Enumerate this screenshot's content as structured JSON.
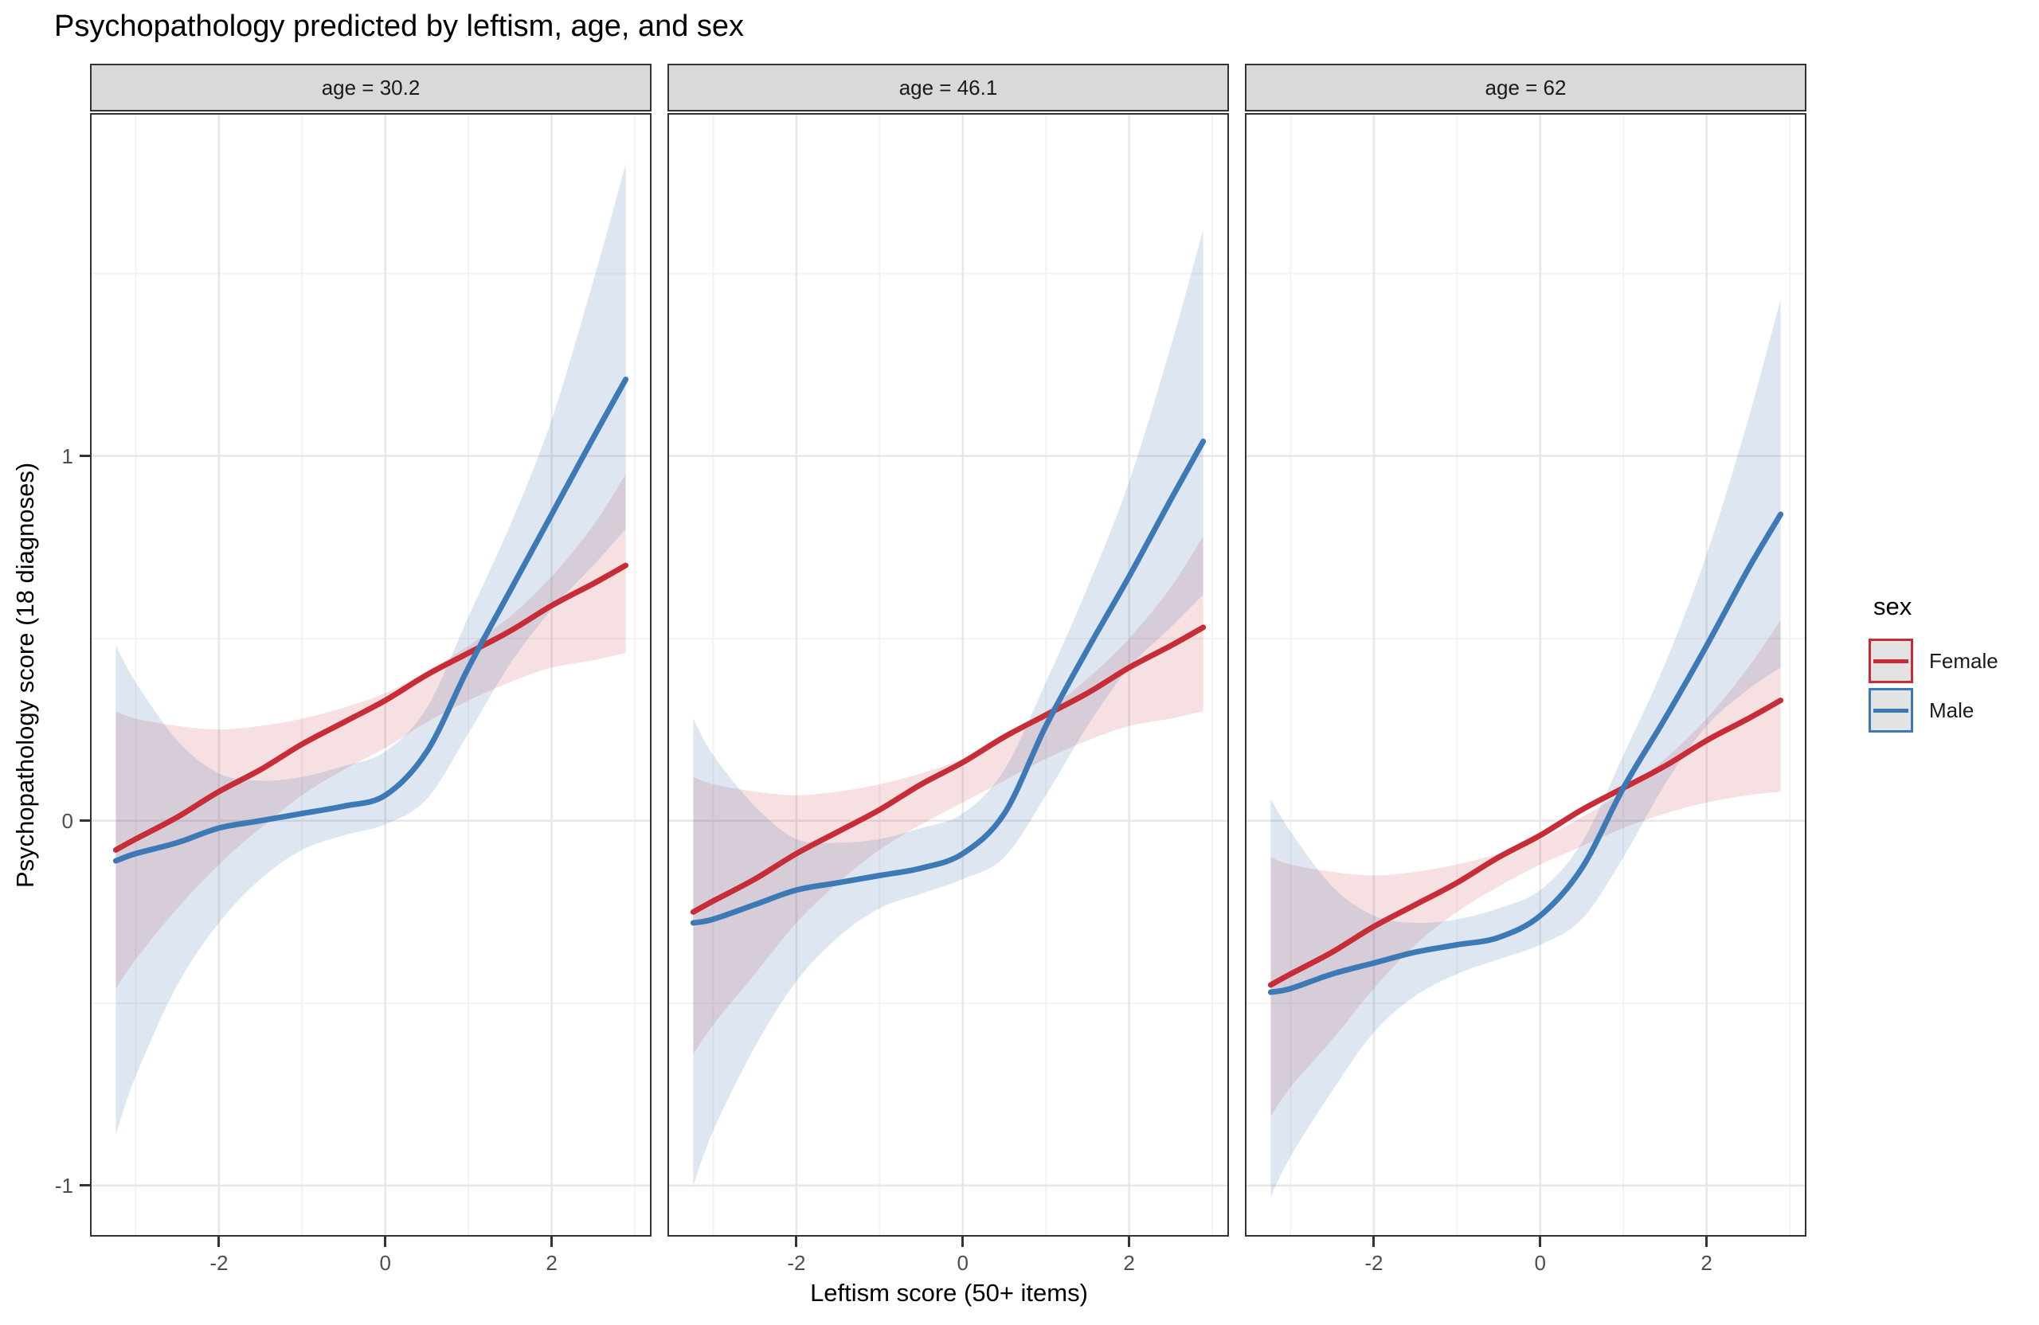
{
  "title": "Psychopathology predicted by leftism, age, and sex",
  "axes": {
    "x": {
      "title": "Leftism score (50+ items)",
      "range": [
        -3.55,
        3.2
      ],
      "major_ticks": [
        {
          "value": -2,
          "label": "-2"
        },
        {
          "value": 0,
          "label": "0"
        },
        {
          "value": 2,
          "label": "2"
        }
      ],
      "minor_gridlines": [
        -3,
        -1,
        1,
        3
      ]
    },
    "y": {
      "title": "Psychopathology score (18 diagnoses)",
      "range": [
        -1.14,
        1.94
      ],
      "major_ticks": [
        {
          "value": 1,
          "label": "1"
        },
        {
          "value": 0,
          "label": "0"
        },
        {
          "value": -1,
          "label": "-1"
        }
      ],
      "minor_gridlines": [
        1.5,
        0.5,
        -0.5
      ]
    }
  },
  "legend": {
    "title": "sex",
    "entries": [
      {
        "label": "Female",
        "color": "#c62d36"
      },
      {
        "label": "Male",
        "color": "#3d79b5"
      }
    ]
  },
  "colors": {
    "female_line": "#c62d36",
    "male_line": "#3d79b5",
    "female_ribbon": "rgba(200,45,55,0.15)",
    "male_ribbon": "rgba(70,120,180,0.18)",
    "grid_major": "#e7e7e7",
    "grid_minor": "#f3f3f3",
    "panel_border": "#333333",
    "strip_fill": "#d9d9d9"
  },
  "chart_data": {
    "type": "line",
    "title": "Psychopathology predicted by leftism, age, and sex",
    "xlabel": "Leftism score (50+ items)",
    "ylabel": "Psychopathology score (18 diagnoses)",
    "xlim": [
      -3.55,
      3.2
    ],
    "ylim": [
      -1.14,
      1.94
    ],
    "x_ticks": [
      -2,
      0,
      2
    ],
    "y_ticks": [
      -1,
      0,
      1
    ],
    "legend_title": "sex",
    "x": [
      -3.24,
      -3.0,
      -2.5,
      -2.0,
      -1.5,
      -1.0,
      -0.5,
      0.0,
      0.5,
      1.0,
      1.5,
      2.0,
      2.5,
      2.89
    ],
    "facets": [
      {
        "label": "age = 30.2",
        "series": [
          {
            "name": "Female",
            "line": [
              -0.08,
              -0.05,
              0.01,
              0.08,
              0.14,
              0.21,
              0.27,
              0.33,
              0.4,
              0.46,
              0.52,
              0.59,
              0.65,
              0.7
            ],
            "ci_upper": [
              0.3,
              0.28,
              0.26,
              0.25,
              0.26,
              0.28,
              0.31,
              0.35,
              0.41,
              0.48,
              0.56,
              0.67,
              0.81,
              0.95
            ],
            "ci_lower": [
              -0.46,
              -0.38,
              -0.24,
              -0.12,
              -0.02,
              0.07,
              0.14,
              0.2,
              0.27,
              0.33,
              0.38,
              0.42,
              0.44,
              0.46
            ]
          },
          {
            "name": "Male",
            "line": [
              -0.11,
              -0.09,
              -0.06,
              -0.02,
              0.0,
              0.02,
              0.04,
              0.07,
              0.19,
              0.42,
              0.63,
              0.84,
              1.05,
              1.21
            ],
            "ci_upper": [
              0.48,
              0.38,
              0.22,
              0.13,
              0.11,
              0.12,
              0.15,
              0.19,
              0.31,
              0.56,
              0.81,
              1.1,
              1.48,
              1.8
            ],
            "ci_lower": [
              -0.86,
              -0.7,
              -0.45,
              -0.28,
              -0.16,
              -0.08,
              -0.04,
              -0.01,
              0.06,
              0.24,
              0.43,
              0.58,
              0.7,
              0.8
            ]
          }
        ]
      },
      {
        "label": "age = 46.1",
        "series": [
          {
            "name": "Female",
            "line": [
              -0.25,
              -0.22,
              -0.16,
              -0.09,
              -0.03,
              0.03,
              0.1,
              0.16,
              0.23,
              0.29,
              0.35,
              0.42,
              0.48,
              0.53
            ],
            "ci_upper": [
              0.12,
              0.1,
              0.08,
              0.07,
              0.08,
              0.1,
              0.13,
              0.17,
              0.23,
              0.3,
              0.39,
              0.5,
              0.64,
              0.78
            ],
            "ci_lower": [
              -0.64,
              -0.56,
              -0.42,
              -0.28,
              -0.17,
              -0.08,
              -0.01,
              0.05,
              0.11,
              0.17,
              0.22,
              0.26,
              0.28,
              0.3
            ]
          },
          {
            "name": "Male",
            "line": [
              -0.28,
              -0.27,
              -0.23,
              -0.19,
              -0.17,
              -0.15,
              -0.13,
              -0.09,
              0.02,
              0.26,
              0.47,
              0.67,
              0.88,
              1.04
            ],
            "ci_upper": [
              0.28,
              0.18,
              0.04,
              -0.05,
              -0.06,
              -0.05,
              -0.02,
              0.02,
              0.14,
              0.38,
              0.64,
              0.93,
              1.3,
              1.62
            ],
            "ci_lower": [
              -1.0,
              -0.85,
              -0.62,
              -0.44,
              -0.32,
              -0.24,
              -0.2,
              -0.16,
              -0.1,
              0.07,
              0.26,
              0.42,
              0.53,
              0.62
            ]
          }
        ]
      },
      {
        "label": "age = 62",
        "series": [
          {
            "name": "Female",
            "line": [
              -0.45,
              -0.42,
              -0.36,
              -0.29,
              -0.23,
              -0.17,
              -0.1,
              -0.04,
              0.03,
              0.09,
              0.15,
              0.22,
              0.28,
              0.33
            ],
            "ci_upper": [
              -0.1,
              -0.12,
              -0.14,
              -0.15,
              -0.14,
              -0.12,
              -0.09,
              -0.05,
              0.01,
              0.08,
              0.17,
              0.28,
              0.42,
              0.55
            ],
            "ci_lower": [
              -0.81,
              -0.73,
              -0.6,
              -0.46,
              -0.34,
              -0.25,
              -0.18,
              -0.12,
              -0.07,
              -0.02,
              0.02,
              0.05,
              0.07,
              0.08
            ]
          },
          {
            "name": "Male",
            "line": [
              -0.47,
              -0.46,
              -0.42,
              -0.39,
              -0.36,
              -0.34,
              -0.32,
              -0.26,
              -0.13,
              0.09,
              0.28,
              0.48,
              0.69,
              0.84
            ],
            "ci_upper": [
              0.06,
              -0.03,
              -0.18,
              -0.26,
              -0.28,
              -0.27,
              -0.24,
              -0.19,
              -0.06,
              0.18,
              0.43,
              0.73,
              1.1,
              1.43
            ],
            "ci_lower": [
              -1.03,
              -0.92,
              -0.74,
              -0.58,
              -0.48,
              -0.42,
              -0.38,
              -0.34,
              -0.27,
              -0.1,
              0.1,
              0.26,
              0.36,
              0.42
            ]
          }
        ]
      }
    ]
  }
}
